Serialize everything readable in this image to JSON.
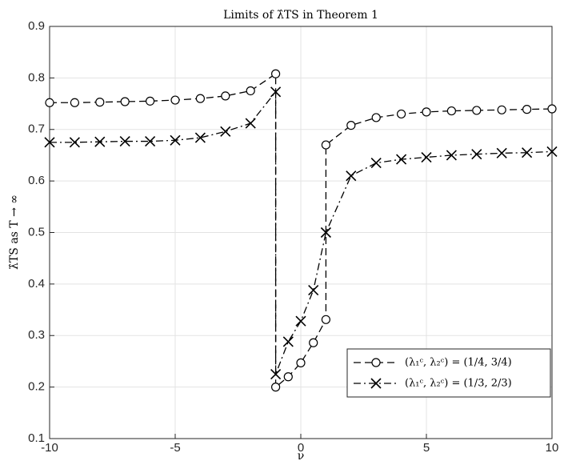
{
  "chart_data": {
    "type": "line",
    "title": "Limits of λ̂TS in Theorem 1",
    "x_label": "ν",
    "y_label": "λ̂TS as T → ∞",
    "xlim": [
      -10,
      10
    ],
    "xticks": [
      -10,
      -5,
      0,
      5,
      10
    ],
    "ylim": [
      0.1,
      0.9
    ],
    "yticks": [
      0.1,
      0.2,
      0.3,
      0.4,
      0.5,
      0.6,
      0.7,
      0.8,
      0.9
    ],
    "grid": true,
    "legend_position": "lower right",
    "series": [
      {
        "name": "(λ₁ᶜ, λ₂ᶜ) = (1/4, 3/4)",
        "color": "#000000",
        "marker": "circle",
        "dash": "dashed",
        "x": [
          -10,
          -9,
          -8,
          -7,
          -6,
          -5,
          -4,
          -3,
          -2,
          -1,
          -1,
          -0.5,
          0,
          0.5,
          1,
          1,
          2,
          3,
          4,
          5,
          6,
          7,
          8,
          9,
          10
        ],
        "values": [
          0.752,
          0.752,
          0.753,
          0.754,
          0.755,
          0.757,
          0.76,
          0.765,
          0.775,
          0.808,
          0.2,
          0.22,
          0.247,
          0.286,
          0.331,
          0.67,
          0.708,
          0.723,
          0.73,
          0.734,
          0.736,
          0.737,
          0.738,
          0.739,
          0.74
        ]
      },
      {
        "name": "(λ₁ᶜ, λ₂ᶜ) = (1/3, 2/3)",
        "color": "#000000",
        "marker": "x",
        "dash": "dashdot",
        "x": [
          -10,
          -9,
          -8,
          -7,
          -6,
          -5,
          -4,
          -3,
          -2,
          -1,
          -1,
          -0.5,
          0,
          0.5,
          1,
          2,
          3,
          4,
          5,
          6,
          7,
          8,
          9,
          10
        ],
        "values": [
          0.675,
          0.675,
          0.676,
          0.677,
          0.677,
          0.679,
          0.684,
          0.696,
          0.712,
          0.773,
          0.225,
          0.288,
          0.328,
          0.388,
          0.5,
          0.61,
          0.635,
          0.642,
          0.646,
          0.65,
          0.652,
          0.654,
          0.655,
          0.657
        ]
      }
    ]
  }
}
